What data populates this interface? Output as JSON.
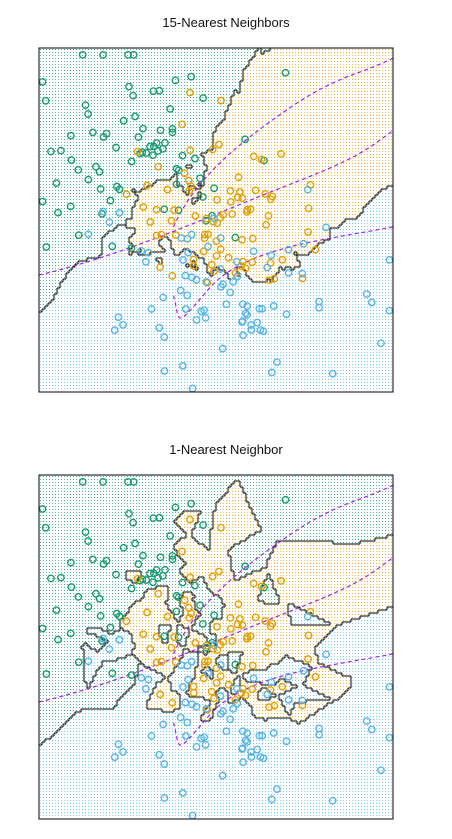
{
  "chart_data": [
    {
      "type": "scatter",
      "title": "15-Nearest Neighbors",
      "xlabel": "",
      "ylabel": "",
      "axes": "none",
      "colors": {
        "class_a": "#1a9a73",
        "class_b": "#e69f00",
        "class_c": "#56b4e9",
        "boundary": "#000000",
        "bayes": "#a020f0"
      },
      "region_fill": "dotted-grid",
      "bayes_boundary": "dashed",
      "seed": 7,
      "classes": [
        {
          "count": 75,
          "placement": "upper-left"
        },
        {
          "count": 80,
          "placement": "center-right"
        },
        {
          "count": 80,
          "placement": "lower"
        }
      ],
      "boundary_style": "smooth"
    },
    {
      "type": "scatter",
      "title": "1-Nearest Neighbor",
      "xlabel": "",
      "ylabel": "",
      "axes": "none",
      "colors": {
        "class_a": "#1a9a73",
        "class_b": "#e69f00",
        "class_c": "#56b4e9",
        "boundary": "#000000",
        "bayes": "#a020f0"
      },
      "region_fill": "dotted-grid",
      "bayes_boundary": "dashed",
      "seed": 7,
      "classes": [
        {
          "count": 75,
          "placement": "upper-left"
        },
        {
          "count": 80,
          "placement": "center-right"
        },
        {
          "count": 80,
          "placement": "lower"
        }
      ],
      "boundary_style": "jagged"
    }
  ]
}
